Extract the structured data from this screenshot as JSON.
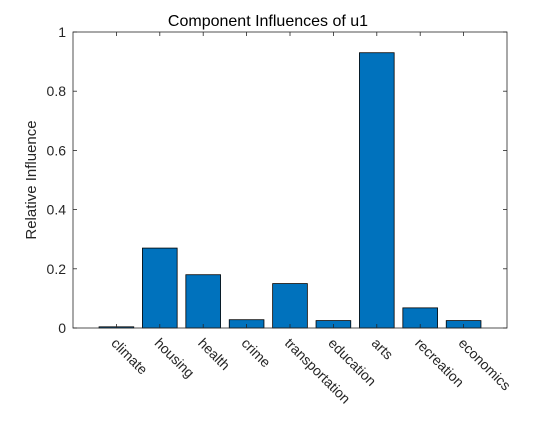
{
  "chart_data": {
    "type": "bar",
    "title": "Component Influences of u1",
    "xlabel": "",
    "ylabel": "Relative Influence",
    "categories": [
      "climate",
      "housing",
      "health",
      "crime",
      "transportation",
      "education",
      "arts",
      "recreation",
      "economics"
    ],
    "values": [
      0.004,
      0.27,
      0.18,
      0.028,
      0.15,
      0.025,
      0.93,
      0.068,
      0.025
    ],
    "ylim": [
      0,
      1
    ],
    "yticks": [
      "0",
      "0.2",
      "0.4",
      "0.6",
      "0.8",
      "1"
    ],
    "grid": false,
    "bar_color": "#0072BD"
  }
}
